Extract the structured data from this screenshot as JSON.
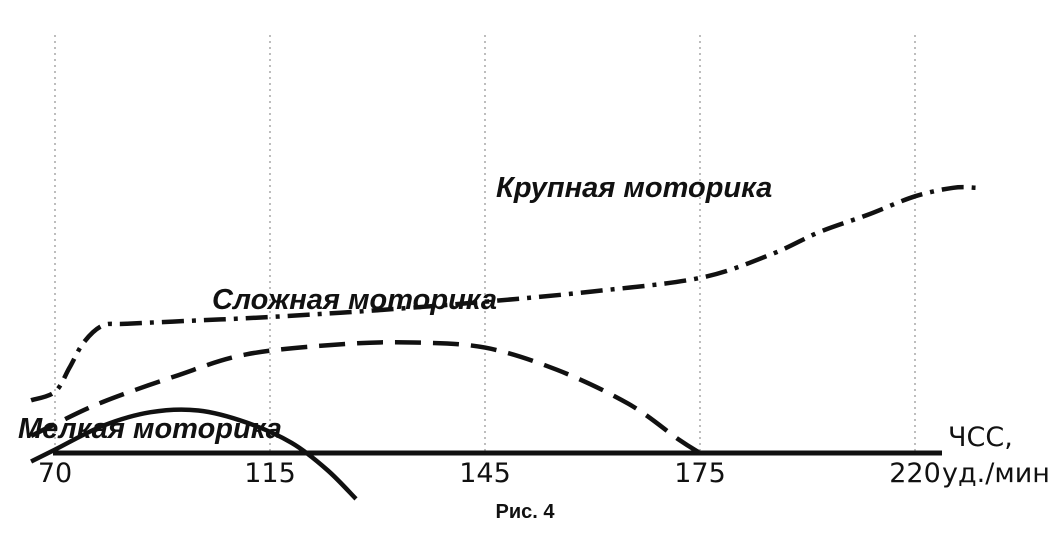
{
  "chart_data": {
    "type": "line",
    "x_ticks": [
      70,
      115,
      145,
      175,
      220
    ],
    "x_unit_line1": "ЧСС,",
    "x_unit_line2": "уд./мин",
    "caption": "Рис. 4",
    "grid": "vertical dotted lines at ticks",
    "series": [
      {
        "name": "Крупная моторика",
        "style": "dash-dot",
        "points": [
          [
            65,
            31
          ],
          [
            70,
            36
          ],
          [
            73,
            50
          ],
          [
            76,
            65
          ],
          [
            80,
            75
          ],
          [
            85,
            76
          ],
          [
            100,
            78
          ],
          [
            115,
            80
          ],
          [
            130,
            84
          ],
          [
            145,
            89
          ],
          [
            160,
            95
          ],
          [
            175,
            103
          ],
          [
            190,
            117
          ],
          [
            200,
            130
          ],
          [
            210,
            140
          ],
          [
            220,
            151
          ],
          [
            228,
            156
          ],
          [
            233,
            156
          ]
        ]
      },
      {
        "name": "Сложная моторика",
        "style": "dashed",
        "points": [
          [
            65,
            10
          ],
          [
            70,
            17
          ],
          [
            80,
            30
          ],
          [
            95,
            45
          ],
          [
            110,
            58
          ],
          [
            125,
            64
          ],
          [
            135,
            65
          ],
          [
            145,
            62
          ],
          [
            155,
            49
          ],
          [
            165,
            29
          ],
          [
            172,
            8
          ],
          [
            175,
            0
          ]
        ]
      },
      {
        "name": "Мелкая моторика",
        "style": "solid",
        "points": [
          [
            65,
            -5
          ],
          [
            70,
            2
          ],
          [
            80,
            16
          ],
          [
            90,
            24
          ],
          [
            100,
            25
          ],
          [
            110,
            18
          ],
          [
            118,
            6
          ],
          [
            123,
            -10
          ],
          [
            127,
            -27
          ]
        ]
      }
    ]
  }
}
